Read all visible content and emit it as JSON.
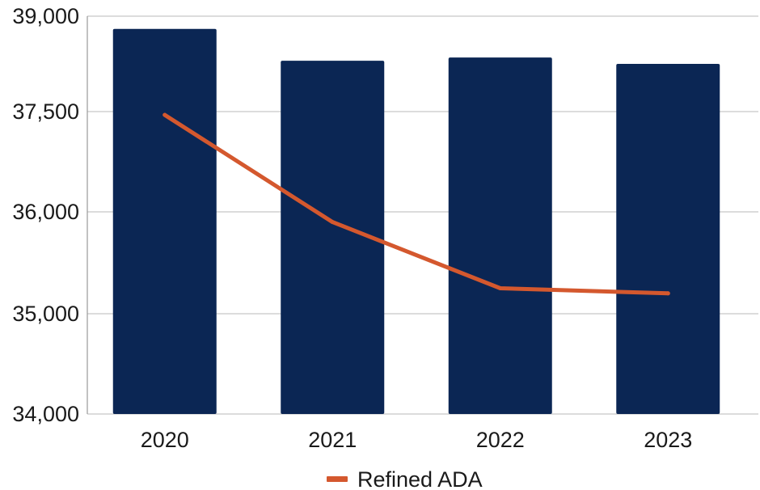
{
  "chart_data": {
    "type": "bar",
    "categories": [
      "2020",
      "2021",
      "2022",
      "2023"
    ],
    "y_ticks": [
      {
        "value": 34000,
        "label": "34,000"
      },
      {
        "value": 35000,
        "label": "35,000"
      },
      {
        "value": 36000,
        "label": "36,000"
      },
      {
        "value": 37500,
        "label": "37,500"
      },
      {
        "value": 39000,
        "label": "39,000"
      }
    ],
    "y_scale_note": "tick labels unevenly spaced values; gridlines evenly spaced",
    "series": [
      {
        "kind": "bar",
        "values": [
          38800,
          38300,
          38350,
          38250
        ],
        "color": "#0b2654"
      },
      {
        "kind": "line",
        "name": "Refined ADA",
        "values": [
          37450,
          35900,
          35250,
          35200
        ],
        "color": "#d4582e"
      }
    ],
    "title": "",
    "xlabel": "",
    "ylabel": "",
    "grid": true,
    "legend": "bottom-center"
  }
}
